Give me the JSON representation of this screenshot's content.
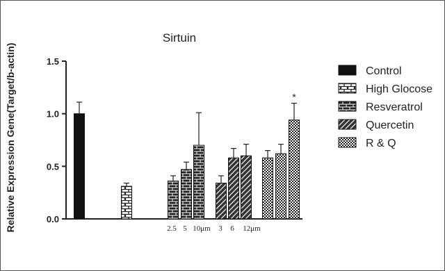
{
  "chart_data": {
    "type": "bar",
    "title": "Sirtuin",
    "ylabel": "Relative Expression Gene(Target/b-actin)",
    "xlabel": "",
    "ylim": [
      0,
      1.5
    ],
    "yticks": [
      "0.0",
      "0.5",
      "1.0",
      "1.5"
    ],
    "grid": false,
    "legend_position": "right",
    "legend": [
      {
        "name": "Control",
        "pattern": "solid"
      },
      {
        "name": "High Glocose",
        "pattern": "brick-light"
      },
      {
        "name": "Resveratrol",
        "pattern": "brick-dark"
      },
      {
        "name": "Quercetin",
        "pattern": "diagonal"
      },
      {
        "name": "R & Q",
        "pattern": "checker"
      }
    ],
    "bars": [
      {
        "group": "Control",
        "value": 1.0,
        "error": 0.11
      },
      {
        "group": "High Glocose",
        "value": 0.31,
        "error": 0.03
      },
      {
        "group": "Resveratrol",
        "label": "2.5",
        "value": 0.36,
        "error": 0.05
      },
      {
        "group": "Resveratrol",
        "label": "5",
        "value": 0.47,
        "error": 0.07
      },
      {
        "group": "Resveratrol",
        "label": "10μm",
        "value": 0.7,
        "error": 0.31
      },
      {
        "group": "Quercetin",
        "label": "3",
        "value": 0.34,
        "error": 0.07
      },
      {
        "group": "Quercetin",
        "label": "6",
        "value": 0.58,
        "error": 0.09
      },
      {
        "group": "Quercetin",
        "label": "12μm",
        "value": 0.6,
        "error": 0.11
      },
      {
        "group": "R & Q",
        "value": 0.58,
        "error": 0.07
      },
      {
        "group": "R & Q",
        "value": 0.62,
        "error": 0.09
      },
      {
        "group": "R & Q",
        "value": 0.94,
        "error": 0.16,
        "annotation": "*"
      }
    ]
  }
}
